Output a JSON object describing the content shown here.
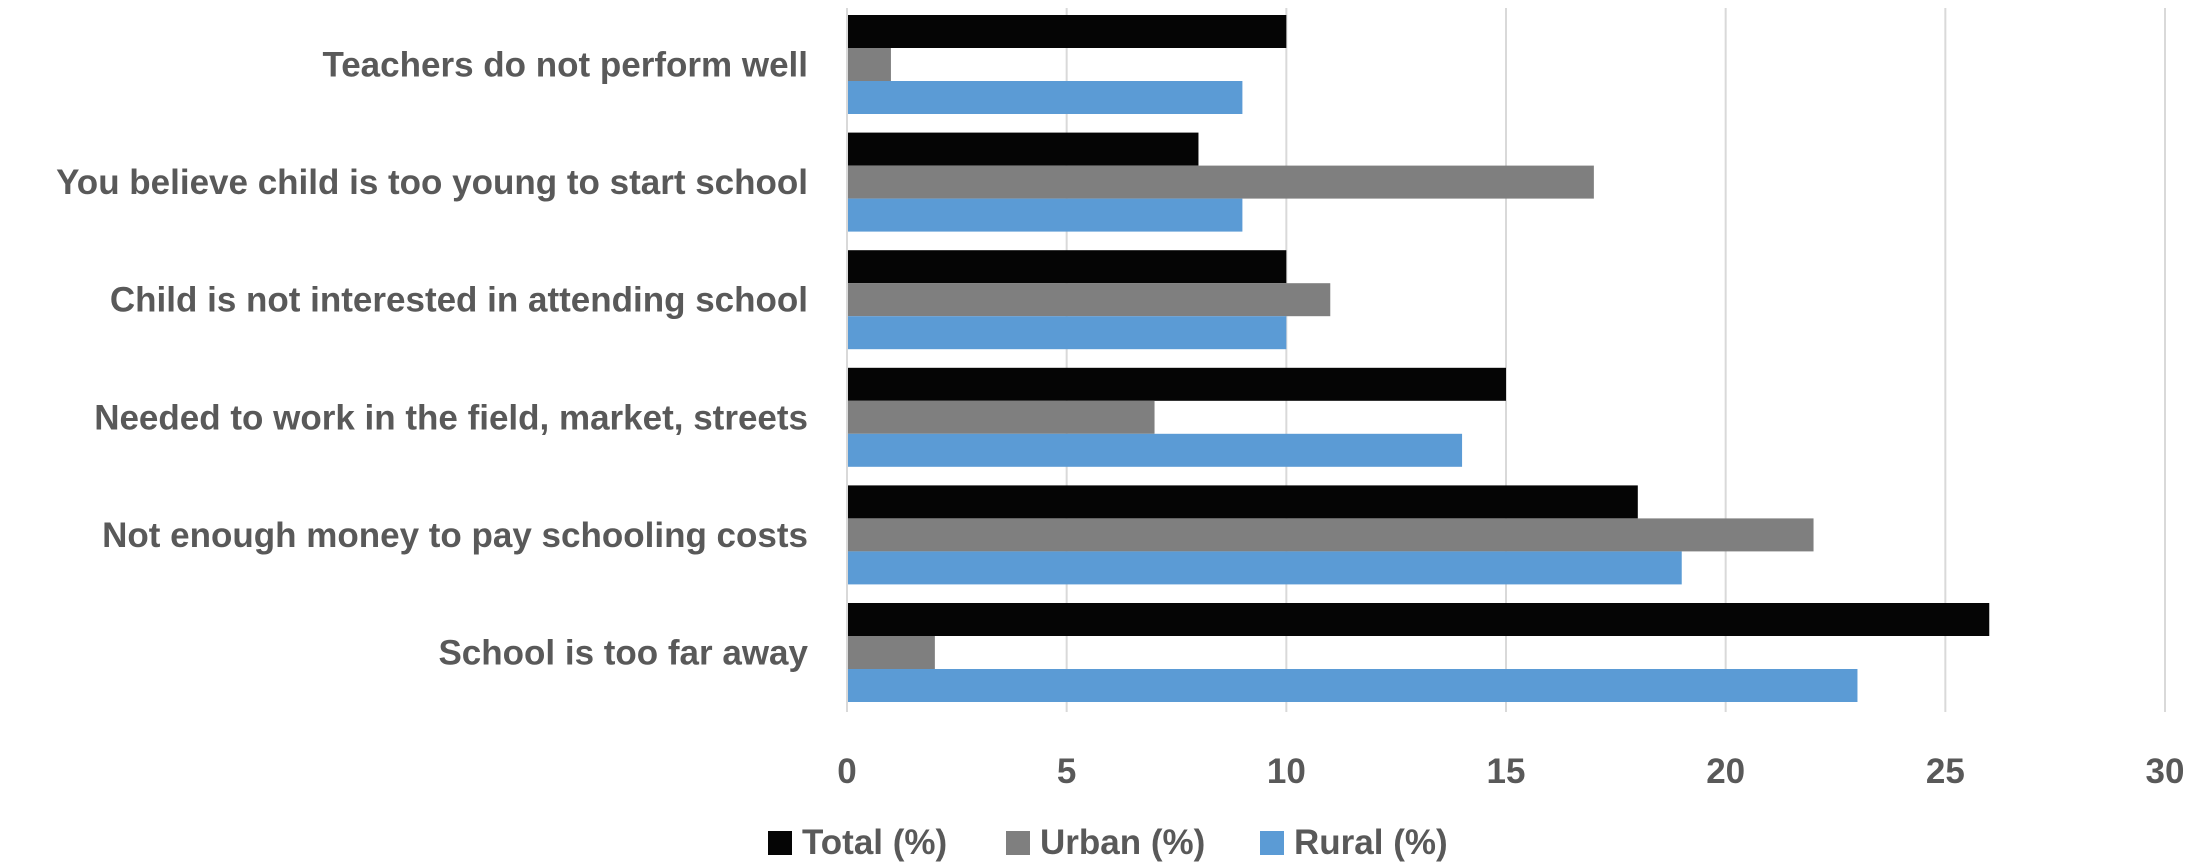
{
  "chart_data": {
    "type": "bar",
    "orientation": "horizontal",
    "categories": [
      "Teachers do not perform well",
      "You believe child is too young to start school",
      "Child is not interested in attending school",
      "Needed to work in the field, market, streets",
      "Not enough money to pay schooling costs",
      "School is too far away"
    ],
    "series": [
      {
        "name": "Total (%)",
        "color": "#050505",
        "values": [
          10,
          8,
          10,
          15,
          18,
          26
        ]
      },
      {
        "name": "Urban (%)",
        "color": "#7f7f7f",
        "values": [
          1,
          17,
          11,
          7,
          22,
          2
        ]
      },
      {
        "name": "Rural (%)",
        "color": "#5b9bd5",
        "values": [
          9,
          9,
          10,
          14,
          19,
          23
        ]
      }
    ],
    "xlim": [
      0,
      30
    ],
    "xticks": [
      "0",
      "5",
      "10",
      "15",
      "20",
      "25",
      "30"
    ],
    "xtick_values": [
      0,
      5,
      10,
      15,
      20,
      25,
      30
    ],
    "grid": true,
    "legend_position": "bottom"
  }
}
